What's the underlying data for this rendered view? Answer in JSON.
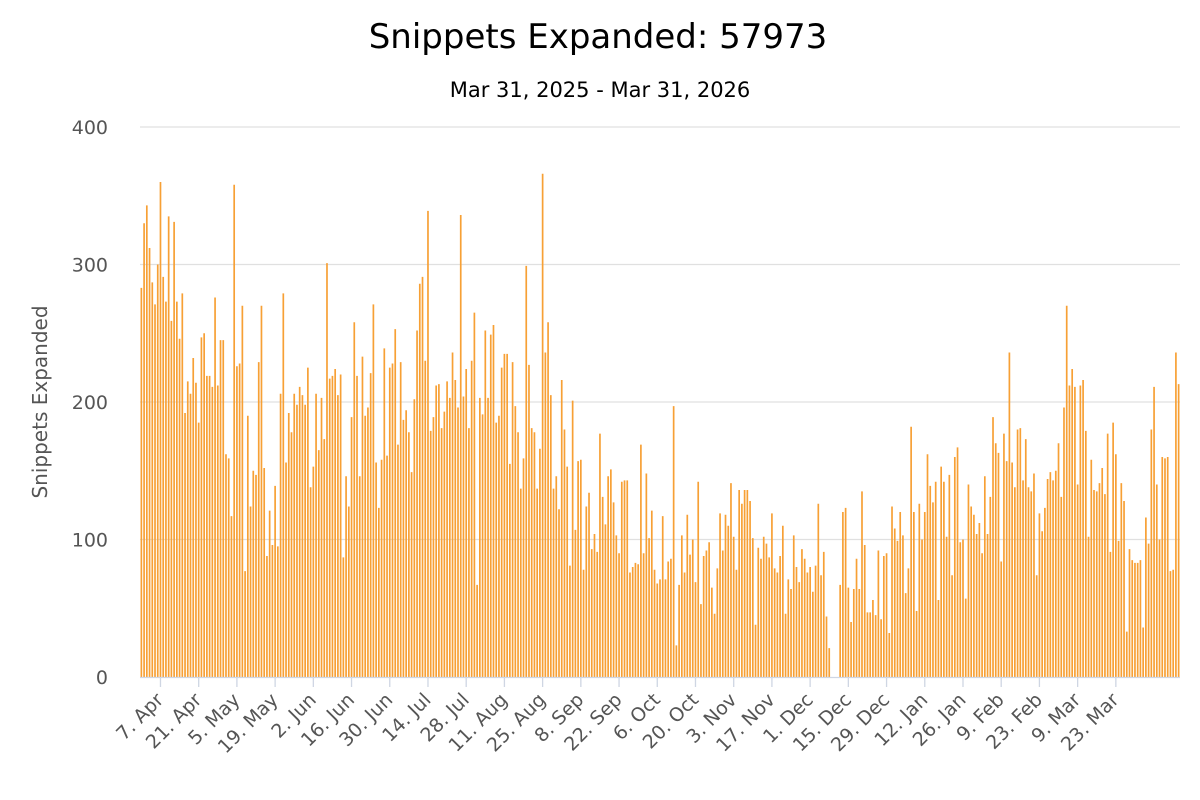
{
  "chart_data": {
    "type": "bar",
    "title": "Snippets Expanded: 57973",
    "subtitle": "Mar 31, 2025 - Mar 31, 2026",
    "xlabel": "",
    "ylabel": "Snippets Expanded",
    "ylim": [
      0,
      400
    ],
    "yticks": [
      0,
      100,
      200,
      300,
      400
    ],
    "grid": true,
    "legend": "none",
    "bar_color": "#f7a035",
    "x_start": "2025-03-31",
    "x_end": "2026-03-31",
    "x_tick_labels": [
      {
        "label": "7. Apr",
        "day_index": 7
      },
      {
        "label": "21. Apr",
        "day_index": 21
      },
      {
        "label": "5. May",
        "day_index": 35
      },
      {
        "label": "19. May",
        "day_index": 49
      },
      {
        "label": "2. Jun",
        "day_index": 63
      },
      {
        "label": "16. Jun",
        "day_index": 77
      },
      {
        "label": "30. Jun",
        "day_index": 91
      },
      {
        "label": "14. Jul",
        "day_index": 105
      },
      {
        "label": "28. Jul",
        "day_index": 119
      },
      {
        "label": "11. Aug",
        "day_index": 133
      },
      {
        "label": "25. Aug",
        "day_index": 147
      },
      {
        "label": "8. Sep",
        "day_index": 161
      },
      {
        "label": "22. Sep",
        "day_index": 175
      },
      {
        "label": "6. Oct",
        "day_index": 189
      },
      {
        "label": "20. Oct",
        "day_index": 203
      },
      {
        "label": "3. Nov",
        "day_index": 217
      },
      {
        "label": "17. Nov",
        "day_index": 231
      },
      {
        "label": "1. Dec",
        "day_index": 245
      },
      {
        "label": "15. Dec",
        "day_index": 259
      },
      {
        "label": "29. Dec",
        "day_index": 273
      },
      {
        "label": "12. Jan",
        "day_index": 287
      },
      {
        "label": "26. Jan",
        "day_index": 301
      },
      {
        "label": "9. Feb",
        "day_index": 315
      },
      {
        "label": "23. Feb",
        "day_index": 329
      },
      {
        "label": "9. Mar",
        "day_index": 343
      },
      {
        "label": "23. Mar",
        "day_index": 357
      }
    ],
    "values": [
      283,
      330,
      343,
      312,
      287,
      271,
      300,
      360,
      291,
      273,
      335,
      259,
      331,
      273,
      246,
      279,
      192,
      215,
      206,
      232,
      214,
      185,
      247,
      250,
      219,
      219,
      211,
      276,
      212,
      245,
      245,
      162,
      159,
      117,
      358,
      226,
      228,
      270,
      77,
      190,
      124,
      150,
      147,
      229,
      270,
      152,
      88,
      121,
      96,
      139,
      95,
      206,
      279,
      156,
      192,
      178,
      206,
      198,
      211,
      205,
      198,
      225,
      138,
      153,
      206,
      165,
      203,
      173,
      301,
      217,
      219,
      224,
      205,
      220,
      87,
      146,
      124,
      189,
      258,
      219,
      146,
      233,
      190,
      196,
      221,
      271,
      156,
      123,
      158,
      239,
      161,
      225,
      228,
      253,
      169,
      229,
      187,
      194,
      178,
      149,
      202,
      252,
      286,
      291,
      230,
      339,
      179,
      189,
      212,
      213,
      181,
      193,
      215,
      203,
      236,
      216,
      196,
      336,
      204,
      224,
      181,
      230,
      265,
      67,
      203,
      191,
      252,
      203,
      249,
      256,
      185,
      190,
      225,
      235,
      235,
      155,
      229,
      197,
      178,
      137,
      159,
      299,
      227,
      181,
      178,
      137,
      166,
      366,
      236,
      258,
      205,
      137,
      146,
      122,
      216,
      180,
      153,
      81,
      201,
      107,
      157,
      158,
      78,
      124,
      134,
      93,
      104,
      91,
      177,
      131,
      111,
      146,
      151,
      127,
      103,
      90,
      142,
      143,
      143,
      76,
      80,
      83,
      82,
      169,
      90,
      148,
      101,
      121,
      78,
      68,
      71,
      117,
      71,
      84,
      86,
      197,
      23,
      67,
      103,
      76,
      118,
      89,
      100,
      69,
      142,
      53,
      88,
      92,
      98,
      65,
      46,
      79,
      119,
      92,
      118,
      110,
      141,
      102,
      78,
      136,
      126,
      136,
      136,
      128,
      101,
      38,
      94,
      86,
      102,
      97,
      87,
      119,
      79,
      76,
      88,
      110,
      46,
      71,
      64,
      103,
      80,
      69,
      93,
      86,
      76,
      80,
      62,
      81,
      126,
      74,
      91,
      44,
      21,
      0,
      0,
      0,
      67,
      120,
      123,
      65,
      40,
      64,
      86,
      64,
      135,
      96,
      47,
      47,
      56,
      45,
      92,
      42,
      88,
      90,
      32,
      124,
      108,
      99,
      120,
      103,
      61,
      79,
      182,
      120,
      48,
      126,
      100,
      120,
      162,
      139,
      127,
      142,
      56,
      153,
      142,
      102,
      147,
      74,
      160,
      167,
      98,
      100,
      57,
      140,
      124,
      118,
      104,
      112,
      90,
      146,
      104,
      131,
      189,
      170,
      163,
      84,
      177,
      157,
      236,
      156,
      138,
      180,
      181,
      143,
      173,
      138,
      135,
      148,
      74,
      119,
      106,
      123,
      144,
      149,
      143,
      150,
      170,
      131,
      196,
      270,
      212,
      224,
      211,
      140,
      212,
      216,
      179,
      102,
      158,
      136,
      135,
      141,
      152,
      133,
      177,
      91,
      185,
      162,
      99,
      141,
      128,
      33,
      93,
      85,
      83,
      83,
      85,
      36,
      116,
      97,
      180,
      211,
      140,
      100,
      160,
      159,
      160,
      77,
      78,
      236,
      213
    ]
  }
}
